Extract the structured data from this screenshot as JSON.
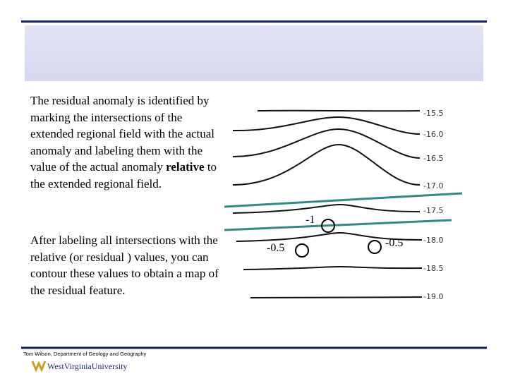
{
  "body": {
    "paragraph1": {
      "before": "The residual anomaly is identified by marking the intersections of the extended regional field with the actual anomaly and labeling them with the value of the actual anomaly",
      "bold": "relative",
      "after": "to the extended regional field."
    },
    "paragraph2": "After labeling all intersections with the relative (or residual ) values, you can contour these values to obtain a map of the residual feature."
  },
  "figure": {
    "contour_labels": [
      "-15.5",
      "-16.0",
      "-16.5",
      "-17.0",
      "-17.5",
      "-18.0",
      "-18.5",
      "-19.0"
    ],
    "residual_labels": [
      "-1",
      "-0.5",
      "-0.5"
    ]
  },
  "footer": {
    "credit": "Tom Wilson, Department of Geology and Geography",
    "logo": "WestVirginiaUniversity"
  }
}
